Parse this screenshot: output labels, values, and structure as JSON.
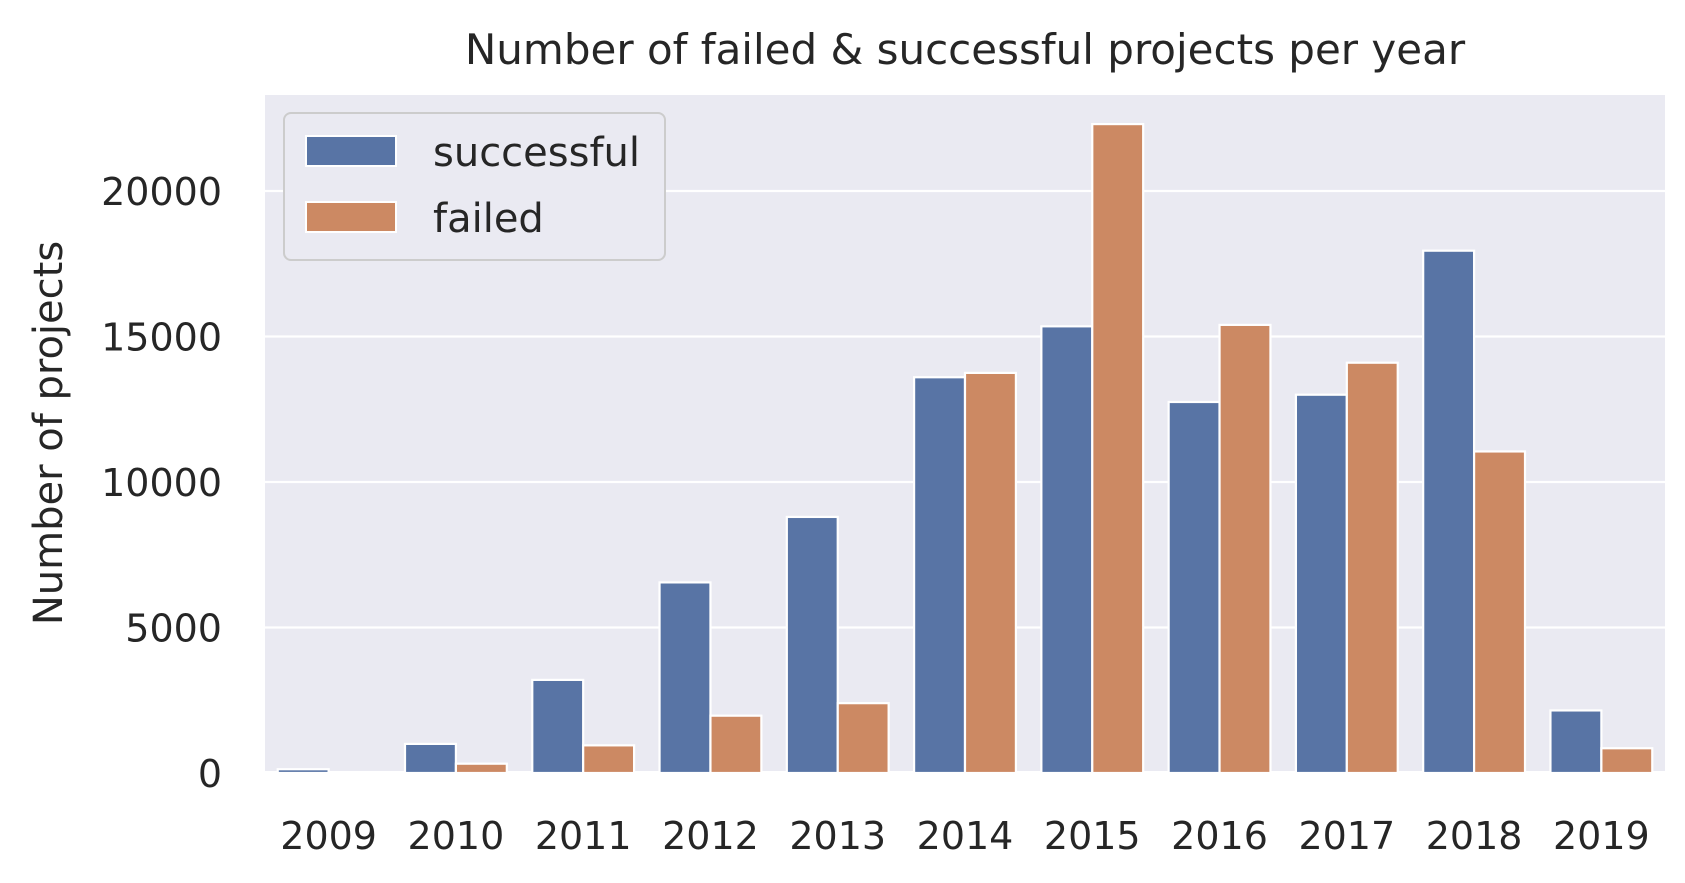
{
  "chart_data": {
    "type": "bar",
    "title": "Number of failed & successful projects per year",
    "xlabel": "",
    "ylabel": "Number of projects",
    "categories": [
      "2009",
      "2010",
      "2011",
      "2012",
      "2013",
      "2014",
      "2015",
      "2016",
      "2017",
      "2018",
      "2019"
    ],
    "series": [
      {
        "name": "successful",
        "color": "#5874a5",
        "values": [
          130,
          1000,
          3200,
          6550,
          8800,
          13600,
          15350,
          12750,
          13000,
          17950,
          2150
        ]
      },
      {
        "name": "failed",
        "color": "#cc8963",
        "values": [
          30,
          320,
          950,
          1970,
          2400,
          13750,
          22300,
          15400,
          14100,
          11050,
          850
        ]
      }
    ],
    "ylim": [
      0,
      23300
    ],
    "yticks": [
      0,
      5000,
      10000,
      15000,
      20000
    ],
    "grid": true,
    "legend_position": "top-left",
    "background": "#eaeaf2"
  }
}
